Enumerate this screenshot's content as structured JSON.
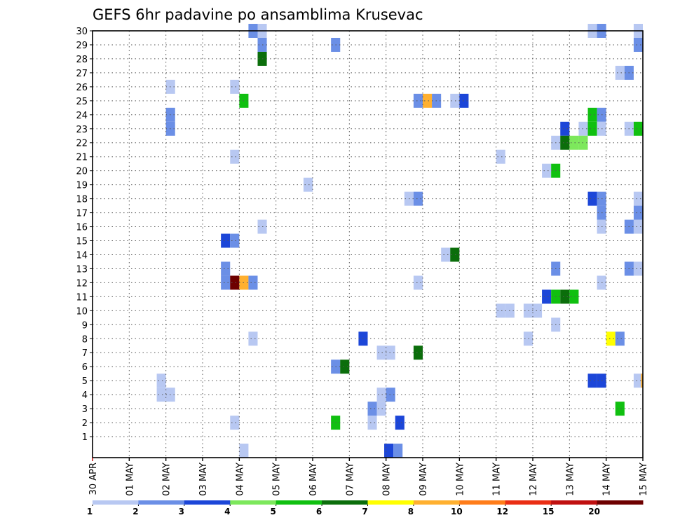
{
  "chart_data": {
    "type": "heatmap",
    "title": "GEFS 6hr padavine po ansamblima Krusevac",
    "xlabel": "",
    "ylabel": "",
    "grid": true,
    "legend": "colorbar bottom",
    "x_tick_labels": [
      "30 APR",
      "01 MAY",
      "02 MAY",
      "03 MAY",
      "04 MAY",
      "05 MAY",
      "06 MAY",
      "07 MAY",
      "08 MAY",
      "09 MAY",
      "10 MAY",
      "11 MAY",
      "12 MAY",
      "13 MAY",
      "14 MAY",
      "15 MAY"
    ],
    "x_range_days": [
      0,
      15
    ],
    "time_step_hours": 6,
    "y_tick_labels": [
      "1",
      "2",
      "3",
      "4",
      "5",
      "6",
      "7",
      "8",
      "9",
      "10",
      "11",
      "12",
      "13",
      "14",
      "15",
      "16",
      "17",
      "18",
      "19",
      "20",
      "21",
      "22",
      "23",
      "24",
      "25",
      "26",
      "27",
      "28",
      "29",
      "30"
    ],
    "y_range": [
      0,
      30
    ],
    "colorbar": {
      "levels": [
        "1",
        "2",
        "3",
        "4",
        "5",
        "6",
        "7",
        "8",
        "10",
        "12",
        "15",
        "20"
      ],
      "colors": [
        "#b8c8f2",
        "#6b8fe6",
        "#1c46d8",
        "#7de85c",
        "#10c010",
        "#0b6e0b",
        "#ffff00",
        "#ffb030",
        "#ff7d1a",
        "#ea2e14",
        "#c01010",
        "#6e0000"
      ]
    },
    "cells": [
      {
        "x": 4.25,
        "y": 30,
        "c": 2
      },
      {
        "x": 4.5,
        "y": 30,
        "c": 1
      },
      {
        "x": 13.5,
        "y": 30,
        "c": 1
      },
      {
        "x": 13.75,
        "y": 30,
        "c": 2
      },
      {
        "x": 14.75,
        "y": 30,
        "c": 1
      },
      {
        "x": 4.5,
        "y": 29,
        "c": 2
      },
      {
        "x": 6.5,
        "y": 29,
        "c": 2
      },
      {
        "x": 14.75,
        "y": 29,
        "c": 2
      },
      {
        "x": 4.5,
        "y": 28,
        "c": 6
      },
      {
        "x": 14.25,
        "y": 27,
        "c": 1
      },
      {
        "x": 14.5,
        "y": 27,
        "c": 2
      },
      {
        "x": 2.0,
        "y": 26,
        "c": 1
      },
      {
        "x": 3.75,
        "y": 26,
        "c": 1
      },
      {
        "x": 4.0,
        "y": 25,
        "c": 5
      },
      {
        "x": 8.75,
        "y": 25,
        "c": 2
      },
      {
        "x": 9.0,
        "y": 25,
        "c": 8
      },
      {
        "x": 9.25,
        "y": 25,
        "c": 2
      },
      {
        "x": 9.75,
        "y": 25,
        "c": 1
      },
      {
        "x": 10.0,
        "y": 25,
        "c": 3
      },
      {
        "x": 2.0,
        "y": 24,
        "c": 2
      },
      {
        "x": 13.5,
        "y": 24,
        "c": 5
      },
      {
        "x": 13.75,
        "y": 24,
        "c": 2
      },
      {
        "x": 2.0,
        "y": 23,
        "c": 2
      },
      {
        "x": 12.75,
        "y": 23,
        "c": 3
      },
      {
        "x": 13.25,
        "y": 23,
        "c": 1
      },
      {
        "x": 13.5,
        "y": 23,
        "c": 5
      },
      {
        "x": 13.75,
        "y": 23,
        "c": 1
      },
      {
        "x": 14.5,
        "y": 23,
        "c": 1
      },
      {
        "x": 14.75,
        "y": 23,
        "c": 5
      },
      {
        "x": 12.5,
        "y": 22,
        "c": 1
      },
      {
        "x": 12.75,
        "y": 22,
        "c": 6
      },
      {
        "x": 13.0,
        "y": 22,
        "c": 4
      },
      {
        "x": 13.25,
        "y": 22,
        "c": 4
      },
      {
        "x": 3.75,
        "y": 21,
        "c": 1
      },
      {
        "x": 11.0,
        "y": 21,
        "c": 1
      },
      {
        "x": 12.25,
        "y": 20,
        "c": 1
      },
      {
        "x": 12.5,
        "y": 20,
        "c": 5
      },
      {
        "x": 5.75,
        "y": 19,
        "c": 1
      },
      {
        "x": 8.5,
        "y": 18,
        "c": 1
      },
      {
        "x": 8.75,
        "y": 18,
        "c": 2
      },
      {
        "x": 13.5,
        "y": 18,
        "c": 3
      },
      {
        "x": 13.75,
        "y": 18,
        "c": 2
      },
      {
        "x": 14.75,
        "y": 18,
        "c": 1
      },
      {
        "x": 13.75,
        "y": 17,
        "c": 2
      },
      {
        "x": 14.75,
        "y": 17,
        "c": 2
      },
      {
        "x": 4.5,
        "y": 16,
        "c": 1
      },
      {
        "x": 13.75,
        "y": 16,
        "c": 1
      },
      {
        "x": 14.5,
        "y": 16,
        "c": 2
      },
      {
        "x": 14.75,
        "y": 16,
        "c": 1
      },
      {
        "x": 3.5,
        "y": 15,
        "c": 3
      },
      {
        "x": 3.75,
        "y": 15,
        "c": 2
      },
      {
        "x": 9.5,
        "y": 14,
        "c": 1
      },
      {
        "x": 9.75,
        "y": 14,
        "c": 6
      },
      {
        "x": 3.5,
        "y": 13,
        "c": 2
      },
      {
        "x": 12.5,
        "y": 13,
        "c": 2
      },
      {
        "x": 14.5,
        "y": 13,
        "c": 2
      },
      {
        "x": 14.75,
        "y": 13,
        "c": 1
      },
      {
        "x": 3.5,
        "y": 12,
        "c": 2
      },
      {
        "x": 3.75,
        "y": 12,
        "c": 12
      },
      {
        "x": 4.0,
        "y": 12,
        "c": 8
      },
      {
        "x": 4.25,
        "y": 12,
        "c": 2
      },
      {
        "x": 8.75,
        "y": 12,
        "c": 1
      },
      {
        "x": 13.75,
        "y": 12,
        "c": 1
      },
      {
        "x": 12.25,
        "y": 11,
        "c": 3
      },
      {
        "x": 12.5,
        "y": 11,
        "c": 5
      },
      {
        "x": 12.75,
        "y": 11,
        "c": 6
      },
      {
        "x": 13.0,
        "y": 11,
        "c": 5
      },
      {
        "x": 11.0,
        "y": 10,
        "c": 1
      },
      {
        "x": 11.25,
        "y": 10,
        "c": 1
      },
      {
        "x": 11.75,
        "y": 10,
        "c": 1
      },
      {
        "x": 12.0,
        "y": 10,
        "c": 1
      },
      {
        "x": 12.5,
        "y": 9,
        "c": 1
      },
      {
        "x": 4.25,
        "y": 8,
        "c": 1
      },
      {
        "x": 7.25,
        "y": 8,
        "c": 3
      },
      {
        "x": 11.75,
        "y": 8,
        "c": 1
      },
      {
        "x": 14.0,
        "y": 8,
        "c": 7
      },
      {
        "x": 14.25,
        "y": 8,
        "c": 2
      },
      {
        "x": 7.75,
        "y": 7,
        "c": 1
      },
      {
        "x": 8.0,
        "y": 7,
        "c": 1
      },
      {
        "x": 8.75,
        "y": 7,
        "c": 6
      },
      {
        "x": 6.5,
        "y": 6,
        "c": 2
      },
      {
        "x": 6.75,
        "y": 6,
        "c": 6
      },
      {
        "x": 1.75,
        "y": 5,
        "c": 1
      },
      {
        "x": 13.5,
        "y": 5,
        "c": 3
      },
      {
        "x": 13.75,
        "y": 5,
        "c": 3
      },
      {
        "x": 14.75,
        "y": 5,
        "c": 1
      },
      {
        "x": 14.95,
        "y": 5,
        "c": 8
      },
      {
        "x": 1.75,
        "y": 4,
        "c": 1
      },
      {
        "x": 2.0,
        "y": 4,
        "c": 1
      },
      {
        "x": 7.75,
        "y": 4,
        "c": 1
      },
      {
        "x": 8.0,
        "y": 4,
        "c": 2
      },
      {
        "x": 7.5,
        "y": 3,
        "c": 2
      },
      {
        "x": 7.75,
        "y": 3,
        "c": 1
      },
      {
        "x": 14.25,
        "y": 3,
        "c": 5
      },
      {
        "x": 3.75,
        "y": 2,
        "c": 1
      },
      {
        "x": 6.5,
        "y": 2,
        "c": 5
      },
      {
        "x": 7.5,
        "y": 2,
        "c": 1
      },
      {
        "x": 8.25,
        "y": 2,
        "c": 3
      },
      {
        "x": 4.0,
        "y": 0,
        "c": 1
      },
      {
        "x": 7.95,
        "y": 0,
        "c": 3
      },
      {
        "x": 8.2,
        "y": 0,
        "c": 2
      }
    ]
  }
}
